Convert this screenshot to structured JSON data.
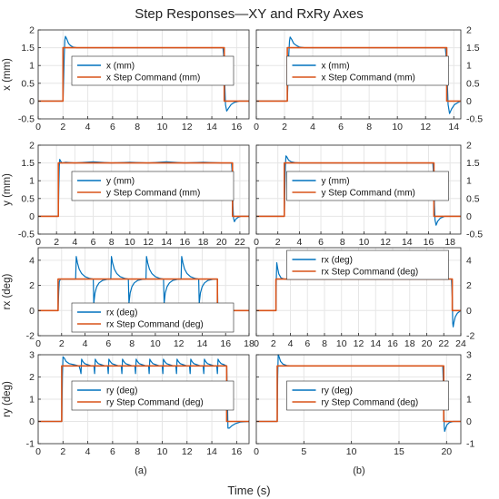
{
  "figure": {
    "title": "Step Responses—XY and RxRy Axes",
    "xlabel": "Time (s)",
    "sublabels": [
      "(a)",
      "(b)"
    ]
  },
  "colors": {
    "response": "#0072BD",
    "command": "#D95319",
    "grid": "#e6e6e6",
    "axis": "#262626"
  },
  "chart_data": [
    {
      "type": "line",
      "row": 0,
      "col": 0,
      "ylabel": "x (mm)",
      "xlim": [
        0,
        17
      ],
      "ylim": [
        -0.5,
        2
      ],
      "xticks": [
        0,
        2,
        4,
        6,
        8,
        10,
        12,
        14,
        16
      ],
      "yticks": [
        -0.5,
        0,
        0.5,
        1,
        1.5,
        2
      ],
      "yticklabels": [
        "-0.5",
        "0",
        "0.5",
        "1",
        "1.5",
        "2"
      ],
      "ytick_side": "left",
      "legend": "center",
      "series": [
        {
          "name": "x (mm)",
          "role": "response",
          "x": [
            0,
            2,
            2.05,
            2.1,
            2.15,
            2.2,
            2.3,
            2.45,
            2.6,
            2.8,
            3.1,
            3.5,
            14.9,
            15.0,
            15.05,
            15.1,
            15.2,
            15.35,
            15.55,
            15.8,
            16.2,
            17
          ],
          "y": [
            0,
            0,
            0.6,
            1.3,
            1.7,
            1.82,
            1.75,
            1.62,
            1.56,
            1.52,
            1.5,
            1.5,
            1.5,
            1.1,
            0.4,
            -0.1,
            -0.28,
            -0.2,
            -0.1,
            -0.04,
            0,
            0
          ]
        },
        {
          "name": "x Step Command (mm)",
          "role": "command",
          "x": [
            0,
            2,
            2,
            15,
            15,
            17
          ],
          "y": [
            0,
            0,
            1.5,
            1.5,
            0,
            0
          ]
        }
      ]
    },
    {
      "type": "line",
      "row": 0,
      "col": 1,
      "ylabel": "",
      "xlim": [
        0,
        14.5
      ],
      "ylim": [
        -0.5,
        2
      ],
      "xticks": [
        0,
        2,
        4,
        6,
        8,
        10,
        12,
        14
      ],
      "yticks": [
        -0.5,
        0,
        0.5,
        1,
        1.5,
        2
      ],
      "yticklabels": [
        "-0.5",
        "0",
        "0.5",
        "1",
        "1.5",
        "2"
      ],
      "ytick_side": "right",
      "legend": "center",
      "series": [
        {
          "name": "x (mm)",
          "role": "response",
          "x": [
            0,
            2.2,
            2.25,
            2.3,
            2.35,
            2.4,
            2.5,
            2.65,
            2.85,
            3.05,
            3.4,
            3.8,
            13.4,
            13.5,
            13.55,
            13.6,
            13.7,
            13.85,
            14.05,
            14.3,
            14.5
          ],
          "y": [
            0,
            0,
            0.6,
            1.3,
            1.68,
            1.8,
            1.74,
            1.62,
            1.56,
            1.52,
            1.5,
            1.5,
            1.5,
            1.1,
            0.4,
            -0.1,
            -0.35,
            -0.22,
            -0.1,
            -0.04,
            0
          ]
        },
        {
          "name": "x Step Command (mm)",
          "role": "command",
          "x": [
            0,
            2.2,
            2.2,
            13.5,
            13.5,
            14.5
          ],
          "y": [
            0,
            0,
            1.5,
            1.5,
            0,
            0
          ]
        }
      ]
    },
    {
      "type": "line",
      "row": 1,
      "col": 0,
      "ylabel": "y (mm)",
      "xlim": [
        0,
        23
      ],
      "ylim": [
        -0.5,
        2
      ],
      "xticks": [
        0,
        2,
        4,
        6,
        8,
        10,
        12,
        14,
        16,
        18,
        20,
        22
      ],
      "yticks": [
        -0.5,
        0,
        0.5,
        1,
        1.5,
        2
      ],
      "yticklabels": [
        "-0.5",
        "0",
        "0.5",
        "1",
        "1.5",
        "2"
      ],
      "ytick_side": "left",
      "legend": "center",
      "series": [
        {
          "name": "y (mm)",
          "role": "response",
          "x": [
            0,
            2.2,
            2.25,
            2.3,
            2.35,
            2.45,
            2.6,
            3.0,
            4,
            6,
            8,
            10,
            12,
            14,
            16,
            18,
            20,
            21.1,
            21.2,
            21.25,
            21.3,
            21.4,
            21.55,
            21.8,
            22.1,
            23
          ],
          "y": [
            0,
            0,
            0.8,
            1.4,
            1.6,
            1.55,
            1.5,
            1.52,
            1.5,
            1.53,
            1.5,
            1.52,
            1.5,
            1.53,
            1.5,
            1.52,
            1.5,
            1.5,
            1.0,
            0.3,
            -0.05,
            -0.15,
            -0.08,
            -0.03,
            0,
            0
          ]
        },
        {
          "name": "y Step Command (mm)",
          "role": "command",
          "x": [
            0,
            2.2,
            2.2,
            21.2,
            21.2,
            23
          ],
          "y": [
            0,
            0,
            1.5,
            1.5,
            0,
            0
          ]
        }
      ]
    },
    {
      "type": "line",
      "row": 1,
      "col": 1,
      "ylabel": "",
      "xlim": [
        0,
        19
      ],
      "ylim": [
        -0.5,
        2
      ],
      "xticks": [
        0,
        2,
        4,
        6,
        8,
        10,
        12,
        14,
        16,
        18
      ],
      "yticks": [
        -0.5,
        0,
        0.5,
        1,
        1.5,
        2
      ],
      "yticklabels": [
        "-0.5",
        "0",
        "0.5",
        "1",
        "1.5",
        "2"
      ],
      "ytick_side": "right",
      "legend": "center",
      "series": [
        {
          "name": "y (mm)",
          "role": "response",
          "x": [
            0,
            2.6,
            2.65,
            2.7,
            2.75,
            2.85,
            3.0,
            3.25,
            3.6,
            4.0,
            16.4,
            16.5,
            16.55,
            16.6,
            16.7,
            16.85,
            17.1,
            17.5,
            19
          ],
          "y": [
            0,
            0,
            0.7,
            1.4,
            1.7,
            1.66,
            1.58,
            1.53,
            1.51,
            1.5,
            1.5,
            1.0,
            0.3,
            -0.1,
            -0.25,
            -0.14,
            -0.05,
            0,
            0
          ]
        },
        {
          "name": "y Step Command (mm)",
          "role": "command",
          "x": [
            0,
            2.6,
            2.6,
            16.5,
            16.5,
            19
          ],
          "y": [
            0,
            0,
            1.5,
            1.5,
            0,
            0
          ]
        }
      ]
    },
    {
      "type": "line",
      "row": 2,
      "col": 0,
      "ylabel": "rx (deg)",
      "xlim": [
        0,
        18
      ],
      "ylim": [
        -2,
        5
      ],
      "xticks": [
        0,
        2,
        4,
        6,
        8,
        10,
        12,
        14,
        16,
        18
      ],
      "xticklabels": [
        "0",
        "2",
        "4",
        "6",
        "8",
        "10",
        "12",
        "14",
        "16",
        "18"
      ],
      "yticks": [
        -2,
        0,
        2,
        4
      ],
      "yticklabels": [
        "-2",
        "0",
        "2",
        "4"
      ],
      "ytick_side": "left",
      "legend": "bottom-center",
      "series": [
        {
          "name": "rx (deg)",
          "role": "response",
          "x": [
            0,
            1.7,
            1.75,
            1.8,
            1.9,
            2.05,
            2.3,
            2.6,
            3.0,
            3.2,
            3.25,
            3.35,
            3.5,
            3.7,
            4.0,
            4.4,
            4.7,
            4.75,
            4.85,
            5.0,
            5.2,
            5.5,
            5.9,
            6.2,
            6.25,
            6.35,
            6.5,
            6.7,
            7.0,
            7.4,
            7.7,
            7.75,
            7.85,
            8.0,
            8.2,
            8.5,
            8.9,
            9.2,
            9.25,
            9.35,
            9.5,
            9.7,
            10.0,
            10.4,
            10.7,
            10.75,
            10.85,
            11.0,
            11.2,
            11.5,
            11.9,
            12.2,
            12.25,
            12.35,
            12.5,
            12.7,
            13.0,
            13.4,
            13.7,
            13.75,
            13.85,
            14.0,
            14.2,
            14.5,
            14.9,
            15.2,
            15.3,
            15.35,
            15.45,
            15.6,
            15.8,
            16.1,
            16.5,
            17,
            18
          ],
          "y": [
            0,
            0,
            1.5,
            2.3,
            2.5,
            2.5,
            2.5,
            2.5,
            2.5,
            2.5,
            4.3,
            3.8,
            3.3,
            2.95,
            2.7,
            2.55,
            2.5,
            0.6,
            1.4,
            1.9,
            2.2,
            2.4,
            2.48,
            2.5,
            4.3,
            3.8,
            3.3,
            2.95,
            2.7,
            2.55,
            2.5,
            0.6,
            1.4,
            1.9,
            2.2,
            2.4,
            2.48,
            2.5,
            4.3,
            3.8,
            3.3,
            2.95,
            2.7,
            2.55,
            2.5,
            0.6,
            1.4,
            1.9,
            2.2,
            2.4,
            2.48,
            2.5,
            4.3,
            3.8,
            3.3,
            2.95,
            2.7,
            2.55,
            2.5,
            0.6,
            1.4,
            1.9,
            2.2,
            2.4,
            2.48,
            2.5,
            2.5,
            -0.5,
            -0.35,
            -0.22,
            -0.12,
            -0.05,
            0,
            0,
            0
          ]
        },
        {
          "name": "rx Step Command (deg)",
          "role": "command",
          "x": [
            0,
            1.7,
            1.7,
            15.3,
            15.3,
            18
          ],
          "y": [
            0,
            0,
            2.5,
            2.5,
            0,
            0
          ]
        }
      ]
    },
    {
      "type": "line",
      "row": 2,
      "col": 1,
      "ylabel": "",
      "xlim": [
        0,
        24
      ],
      "ylim": [
        -2,
        5
      ],
      "xticks": [
        0,
        2,
        4,
        6,
        8,
        10,
        12,
        14,
        16,
        18,
        20,
        22,
        24
      ],
      "yticks": [
        -2,
        0,
        2,
        4
      ],
      "yticklabels": [
        "-2",
        "0",
        "2",
        "4"
      ],
      "ytick_side": "right",
      "legend": "top-center",
      "series": [
        {
          "name": "rx (deg)",
          "role": "response",
          "x": [
            0,
            2.3,
            2.35,
            2.4,
            2.5,
            2.65,
            2.9,
            3.3,
            3.8,
            22.9,
            23.0,
            23.05,
            23.1,
            23.2,
            23.35,
            23.6,
            24
          ],
          "y": [
            0,
            0,
            2.5,
            3.8,
            3.4,
            2.9,
            2.6,
            2.5,
            2.5,
            2.5,
            1.0,
            -1.0,
            -1.3,
            -0.9,
            -0.5,
            -0.2,
            0
          ]
        },
        {
          "name": "rx Step Command (deg)",
          "role": "command",
          "x": [
            0,
            2.3,
            2.3,
            23.0,
            23.0,
            24
          ],
          "y": [
            0,
            0,
            2.5,
            2.5,
            0,
            0
          ]
        }
      ]
    },
    {
      "type": "line",
      "row": 3,
      "col": 0,
      "ylabel": "ry (deg)",
      "xlim": [
        0,
        17
      ],
      "ylim": [
        -1,
        3
      ],
      "xticks": [
        0,
        2,
        4,
        6,
        8,
        10,
        12,
        14,
        16
      ],
      "yticks": [
        -1,
        0,
        1,
        2,
        3
      ],
      "yticklabels": [
        "-1",
        "0",
        "1",
        "2",
        "3"
      ],
      "ytick_side": "left",
      "legend": "center",
      "series": [
        {
          "name": "ry (deg)",
          "role": "response",
          "x": [
            0,
            1.9,
            1.95,
            2.0,
            2.1,
            2.25,
            2.5,
            2.9,
            3.3,
            3.4,
            3.45,
            3.5,
            3.6,
            3.75,
            4.0,
            4.3,
            4.5,
            4.55,
            4.6,
            4.7,
            4.85,
            5.1,
            5.4,
            5.6,
            5.65,
            5.7,
            5.8,
            5.95,
            6.2,
            6.5,
            6.7,
            6.75,
            6.8,
            6.9,
            7.05,
            7.3,
            7.6,
            7.8,
            7.85,
            7.9,
            8.0,
            8.15,
            8.4,
            8.7,
            8.9,
            8.95,
            9.0,
            9.1,
            9.25,
            9.5,
            9.8,
            10.0,
            10.05,
            10.1,
            10.2,
            10.35,
            10.6,
            10.9,
            11.1,
            11.15,
            11.2,
            11.3,
            11.45,
            11.7,
            12.0,
            12.2,
            12.25,
            12.3,
            12.4,
            12.55,
            12.8,
            13.1,
            13.3,
            13.35,
            13.4,
            13.5,
            13.65,
            13.9,
            14.2,
            14.4,
            14.45,
            14.5,
            14.6,
            14.75,
            15.0,
            15.2,
            15.25,
            15.3,
            15.4,
            15.6,
            15.9,
            16.3,
            17
          ],
          "y": [
            0,
            0,
            2.0,
            2.9,
            2.85,
            2.7,
            2.6,
            2.55,
            2.5,
            2.3,
            2.15,
            2.8,
            2.7,
            2.6,
            2.55,
            2.5,
            2.5,
            2.15,
            2.8,
            2.7,
            2.6,
            2.55,
            2.5,
            2.5,
            2.15,
            2.8,
            2.7,
            2.6,
            2.55,
            2.5,
            2.5,
            2.15,
            2.8,
            2.7,
            2.6,
            2.55,
            2.5,
            2.5,
            2.15,
            2.8,
            2.7,
            2.6,
            2.55,
            2.5,
            2.5,
            2.15,
            2.8,
            2.7,
            2.6,
            2.55,
            2.5,
            2.5,
            2.15,
            2.8,
            2.7,
            2.6,
            2.55,
            2.5,
            2.5,
            2.15,
            2.8,
            2.7,
            2.6,
            2.55,
            2.5,
            2.5,
            2.15,
            2.8,
            2.7,
            2.6,
            2.55,
            2.5,
            2.5,
            2.15,
            2.8,
            2.7,
            2.6,
            2.55,
            2.5,
            2.5,
            2.15,
            2.8,
            2.7,
            2.6,
            2.55,
            2.5,
            1.2,
            -0.3,
            -0.3,
            -0.2,
            -0.1,
            -0.03,
            0
          ]
        },
        {
          "name": "ry Step Command (deg)",
          "role": "command",
          "x": [
            0,
            1.9,
            1.9,
            15.2,
            15.2,
            17
          ],
          "y": [
            0,
            0,
            2.5,
            2.5,
            0,
            0
          ]
        }
      ]
    },
    {
      "type": "line",
      "row": 3,
      "col": 1,
      "ylabel": "",
      "xlim": [
        0,
        21.5
      ],
      "ylim": [
        -1,
        3
      ],
      "xticks": [
        0,
        5,
        10,
        15,
        20
      ],
      "yticks": [
        -1,
        0,
        1,
        2,
        3
      ],
      "yticklabels": [
        "-1",
        "0",
        "1",
        "2",
        "3"
      ],
      "ytick_side": "right",
      "legend": "center",
      "series": [
        {
          "name": "ry (deg)",
          "role": "response",
          "x": [
            0,
            2.2,
            2.25,
            2.3,
            2.4,
            2.55,
            2.8,
            3.2,
            3.8,
            19.6,
            19.7,
            19.75,
            19.8,
            19.9,
            20.05,
            20.3,
            20.7,
            21.5
          ],
          "y": [
            0,
            0,
            2.0,
            3.0,
            2.9,
            2.7,
            2.58,
            2.52,
            2.5,
            2.5,
            1.2,
            -0.2,
            -0.45,
            -0.3,
            -0.15,
            -0.05,
            0,
            0
          ]
        },
        {
          "name": "ry Step Command (deg)",
          "role": "command",
          "x": [
            0,
            2.2,
            2.2,
            19.7,
            19.7,
            21.5
          ],
          "y": [
            0,
            0,
            2.5,
            2.5,
            0,
            0
          ]
        }
      ]
    }
  ]
}
